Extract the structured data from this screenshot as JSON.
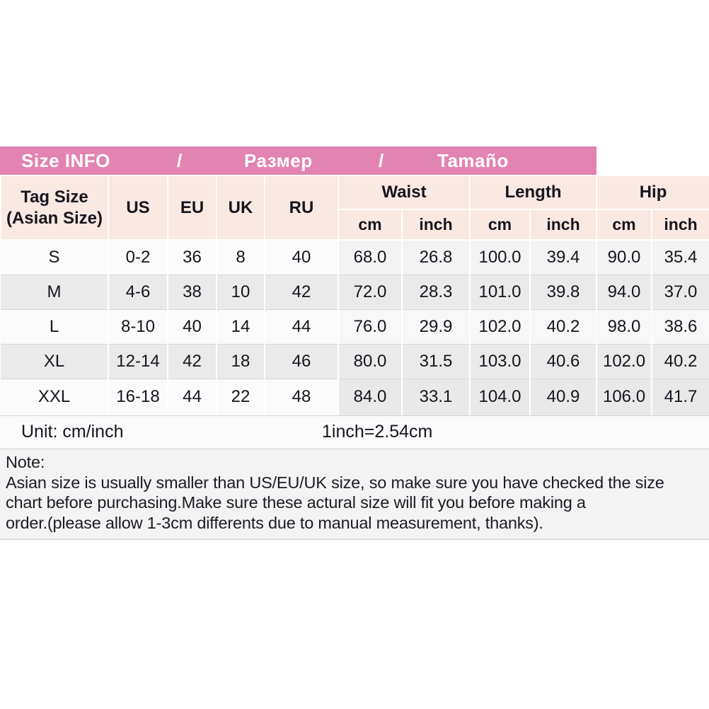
{
  "banner": {
    "segments": [
      "Size INFO",
      "/",
      "Размер",
      "/",
      "Tamaño"
    ]
  },
  "table": {
    "tag_size_line1": "Tag Size",
    "tag_size_line2": "(Asian Size)",
    "size_columns": [
      "US",
      "EU",
      "UK",
      "RU"
    ],
    "measure_groups": [
      "Waist",
      "Length",
      "Hip"
    ],
    "unit_subheaders": [
      "cm",
      "inch",
      "cm",
      "inch",
      "cm",
      "inch"
    ],
    "rows": [
      {
        "tag": "S",
        "us": "0-2",
        "eu": "36",
        "uk": "8",
        "ru": "40",
        "waist_cm": "68.0",
        "waist_inch": "26.8",
        "length_cm": "100.0",
        "length_inch": "39.4",
        "hip_cm": "90.0",
        "hip_inch": "35.4"
      },
      {
        "tag": "M",
        "us": "4-6",
        "eu": "38",
        "uk": "10",
        "ru": "42",
        "waist_cm": "72.0",
        "waist_inch": "28.3",
        "length_cm": "101.0",
        "length_inch": "39.8",
        "hip_cm": "94.0",
        "hip_inch": "37.0"
      },
      {
        "tag": "L",
        "us": "8-10",
        "eu": "40",
        "uk": "14",
        "ru": "44",
        "waist_cm": "76.0",
        "waist_inch": "29.9",
        "length_cm": "102.0",
        "length_inch": "40.2",
        "hip_cm": "98.0",
        "hip_inch": "38.6"
      },
      {
        "tag": "XL",
        "us": "12-14",
        "eu": "42",
        "uk": "18",
        "ru": "46",
        "waist_cm": "80.0",
        "waist_inch": "31.5",
        "length_cm": "103.0",
        "length_inch": "40.6",
        "hip_cm": "102.0",
        "hip_inch": "40.2"
      },
      {
        "tag": "XXL",
        "us": "16-18",
        "eu": "44",
        "uk": "22",
        "ru": "48",
        "waist_cm": "84.0",
        "waist_inch": "33.1",
        "length_cm": "104.0",
        "length_inch": "40.9",
        "hip_cm": "106.0",
        "hip_inch": "41.7"
      }
    ]
  },
  "footer": {
    "unit_label": "Unit: cm/inch",
    "conversion": "1inch=2.54cm"
  },
  "note": {
    "title": "Note:",
    "lines": [
      "Asian size is usually smaller than US/EU/UK size, so make sure you have checked the size",
      "chart before purchasing.Make sure these actural size will fit you before making a",
      "order.(please allow 1-3cm differents due to manual measurement, thanks)."
    ]
  },
  "colors": {
    "banner_pink": "#e283b1",
    "header_peach": "#fae8e2",
    "row_alt_gray": "#eaeaea",
    "note_background": "#f3f3f3"
  }
}
